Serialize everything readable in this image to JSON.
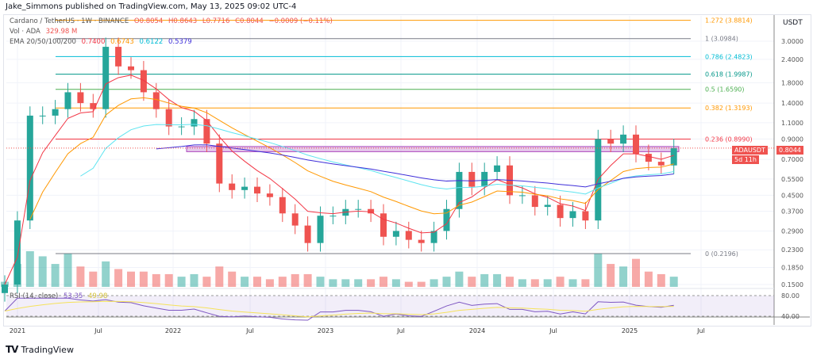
{
  "header": "Jake_Simmons published on TradingView.com, May 13, 2025 09:02 UTC-4",
  "symbol": {
    "name": "Cardano / TetherUS · 1W · BINANCE",
    "o": "O0.8054",
    "h": "H0.8643",
    "l": "L0.7716",
    "c": "C0.8044",
    "chg": "−0.0009 (−0.11%)"
  },
  "vol": {
    "label": "Vol · ADA",
    "value": "329.98 M"
  },
  "ema": {
    "label": "EMA 20/50/100/200",
    "v20": "0.7400",
    "v50": "0.6743",
    "v100": "0.6122",
    "v200": "0.5379"
  },
  "rsi": {
    "label": "RSI (14, close)",
    "value": "53.35",
    "ma": "49.98",
    "ticks": [
      "80.00",
      "40.00"
    ]
  },
  "price_badge": {
    "symbol": "ADAUSDT",
    "price": "0.8044",
    "countdown": "5d 11h"
  },
  "axis_unit": "USDT",
  "logo": "TradingView",
  "colors": {
    "up": "#26a69a",
    "down": "#ef5350",
    "ema20": "#f23645",
    "ema50": "#ff9800",
    "ema100": "#5ee4f0",
    "ema200": "#3f2fd9",
    "rsi": "#7e57c2",
    "rsi_ma": "#f5e25b",
    "zone": "#ce93d8"
  },
  "chart_data": {
    "type": "candlestick",
    "scale": "log",
    "y_ticks": [
      "3.0000",
      "2.4000",
      "1.8000",
      "1.4000",
      "1.1000",
      "0.9000",
      "0.7000",
      "0.5500",
      "0.4500",
      "0.3700",
      "0.2900",
      "0.2300",
      "0.1850",
      "0.1500"
    ],
    "x_ticks": [
      "2021",
      "Jul",
      "2022",
      "Jul",
      "2023",
      "Jul",
      "2024",
      "Jul",
      "2025",
      "Jul"
    ],
    "fib_levels": [
      {
        "label": "1.272 (3.8814)",
        "price": 3.8814,
        "color": "#ff9800"
      },
      {
        "label": "1 (3.0984)",
        "price": 3.0984,
        "color": "#787b86"
      },
      {
        "label": "0.786 (2.4823)",
        "price": 2.4823,
        "color": "#00bcd4"
      },
      {
        "label": "0.618 (1.9987)",
        "price": 1.9987,
        "color": "#009688"
      },
      {
        "label": "0.5 (1.6590)",
        "price": 1.659,
        "color": "#4caf50"
      },
      {
        "label": "0.382 (1.3193)",
        "price": 1.3193,
        "color": "#ff9800"
      },
      {
        "label": "0.236 (0.8990)",
        "price": 0.899,
        "color": "#f23645"
      },
      {
        "label": "0 (0.2196)",
        "price": 0.2196,
        "color": "#787b86"
      }
    ],
    "zone": [
      0.77,
      0.82
    ],
    "closes": [
      0.15,
      0.33,
      1.2,
      1.2,
      1.3,
      1.6,
      1.4,
      1.3,
      2.8,
      2.2,
      2.1,
      1.6,
      1.3,
      1.05,
      1.05,
      1.15,
      0.85,
      0.52,
      0.48,
      0.5,
      0.46,
      0.44,
      0.36,
      0.31,
      0.25,
      0.35,
      0.35,
      0.38,
      0.38,
      0.36,
      0.27,
      0.29,
      0.26,
      0.25,
      0.29,
      0.38,
      0.6,
      0.5,
      0.6,
      0.65,
      0.45,
      0.45,
      0.39,
      0.4,
      0.34,
      0.37,
      0.33,
      0.9,
      0.85,
      0.95,
      0.75,
      0.68,
      0.65,
      0.8044
    ],
    "volume": [
      2,
      9,
      14,
      12,
      9,
      13,
      8,
      6,
      10,
      7,
      6,
      6,
      5,
      5,
      4,
      5,
      4,
      8,
      6,
      4,
      4,
      3,
      4,
      5,
      5,
      4,
      3,
      3,
      3,
      3,
      4,
      3,
      2,
      2,
      3,
      4,
      6,
      4,
      5,
      5,
      4,
      3,
      3,
      3,
      4,
      3,
      3,
      13,
      9,
      8,
      11,
      6,
      5,
      4
    ]
  }
}
